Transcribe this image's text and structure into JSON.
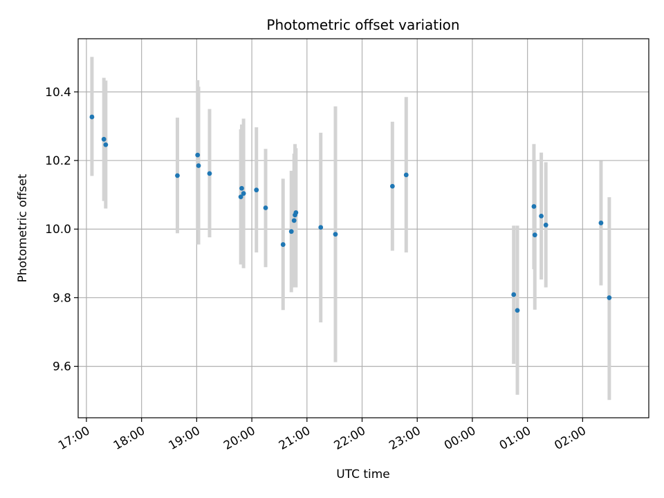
{
  "chart_data": {
    "type": "scatter",
    "title": "Photometric offset variation",
    "xlabel": "UTC time",
    "ylabel": "Photometric offset",
    "x_tick_labels": [
      "17:00",
      "18:00",
      "19:00",
      "20:00",
      "21:00",
      "22:00",
      "23:00",
      "00:00",
      "01:00",
      "02:00"
    ],
    "y_tick_labels": [
      "9.6",
      "9.8",
      "10.0",
      "10.2",
      "10.4"
    ],
    "x_range": [
      "16:51",
      "03:12"
    ],
    "ylim": [
      9.45,
      10.555
    ],
    "grid": true,
    "colors": {
      "marker": "#1f77b4",
      "errorbar": "#d3d3d3",
      "grid": "#b0b0b0"
    },
    "series": [
      {
        "points": [
          {
            "x": "17:06",
            "y": 10.327,
            "low": 10.155,
            "high": 10.502
          },
          {
            "x": "17:19",
            "y": 10.262,
            "low": 10.082,
            "high": 10.441
          },
          {
            "x": "17:21",
            "y": 10.246,
            "low": 10.06,
            "high": 10.433
          },
          {
            "x": "18:39",
            "y": 10.156,
            "low": 9.988,
            "high": 10.325
          },
          {
            "x": "19:01",
            "y": 10.216,
            "low": 9.998,
            "high": 10.434
          },
          {
            "x": "19:02",
            "y": 10.185,
            "low": 9.955,
            "high": 10.415
          },
          {
            "x": "19:14",
            "y": 10.162,
            "low": 9.976,
            "high": 10.35
          },
          {
            "x": "19:48",
            "y": 10.094,
            "low": 9.897,
            "high": 10.291
          },
          {
            "x": "19:49",
            "y": 10.119,
            "low": 9.905,
            "high": 10.305
          },
          {
            "x": "19:51",
            "y": 10.104,
            "low": 9.886,
            "high": 10.322
          },
          {
            "x": "20:05",
            "y": 10.114,
            "low": 9.932,
            "high": 10.297
          },
          {
            "x": "20:15",
            "y": 10.062,
            "low": 9.889,
            "high": 10.234
          },
          {
            "x": "20:34",
            "y": 9.955,
            "low": 9.764,
            "high": 10.147
          },
          {
            "x": "20:43",
            "y": 9.993,
            "low": 9.816,
            "high": 10.17
          },
          {
            "x": "20:46",
            "y": 10.025,
            "low": 9.83,
            "high": 10.22
          },
          {
            "x": "20:47",
            "y": 10.041,
            "low": 9.834,
            "high": 10.248
          },
          {
            "x": "20:48",
            "y": 10.048,
            "low": 9.83,
            "high": 10.236
          },
          {
            "x": "21:15",
            "y": 10.005,
            "low": 9.728,
            "high": 10.281
          },
          {
            "x": "21:31",
            "y": 9.985,
            "low": 9.612,
            "high": 10.358
          },
          {
            "x": "22:33",
            "y": 10.125,
            "low": 9.937,
            "high": 10.313
          },
          {
            "x": "22:48",
            "y": 10.158,
            "low": 9.932,
            "high": 10.385
          },
          {
            "x": "00:45",
            "y": 9.809,
            "low": 9.607,
            "high": 10.01
          },
          {
            "x": "00:49",
            "y": 9.763,
            "low": 9.517,
            "high": 10.01
          },
          {
            "x": "01:07",
            "y": 10.066,
            "low": 9.883,
            "high": 10.248
          },
          {
            "x": "01:08",
            "y": 9.983,
            "low": 9.765,
            "high": 10.201
          },
          {
            "x": "01:15",
            "y": 10.038,
            "low": 9.853,
            "high": 10.223
          },
          {
            "x": "01:20",
            "y": 10.012,
            "low": 9.83,
            "high": 10.195
          },
          {
            "x": "02:20",
            "y": 10.018,
            "low": 9.836,
            "high": 10.199
          },
          {
            "x": "02:29",
            "y": 9.8,
            "low": 9.502,
            "high": 10.093
          }
        ]
      }
    ]
  }
}
